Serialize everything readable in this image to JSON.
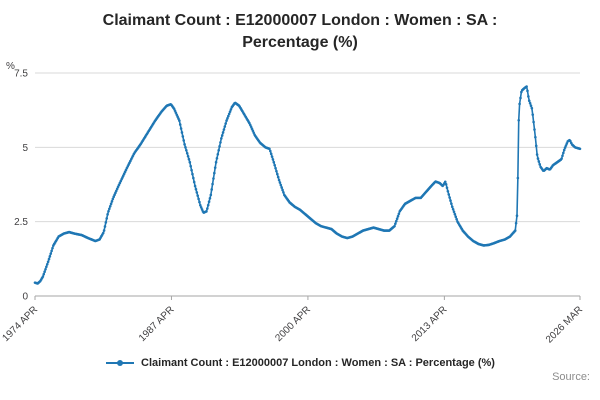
{
  "title": "Claimant Count : E12000007 London : Women : SA : Percentage (%)",
  "legend": {
    "label": "Claimant Count : E12000007 London : Women : SA : Percentage (%)"
  },
  "source": {
    "label": "Source:"
  },
  "colors": {
    "line": "#1f77b4",
    "grid": "#d9d9d9",
    "axis": "#a6a6a6",
    "tick_text": "#414042",
    "title_text": "#262626",
    "source_text": "#8c8c8c"
  },
  "chart_data": {
    "type": "line",
    "title": "Claimant Count : E12000007 London : Women : SA : Percentage (%)",
    "xlabel": "",
    "ylabel": "%",
    "unit_label": "%",
    "grid": "horizontal",
    "legend_position": "bottom",
    "xlim": [
      1974.25,
      2026.17
    ],
    "ylim": [
      0,
      7.5
    ],
    "yticks": [
      {
        "v": 0,
        "label": "0"
      },
      {
        "v": 2.5,
        "label": "2.5"
      },
      {
        "v": 5,
        "label": "5"
      },
      {
        "v": 7.5,
        "label": "7.5"
      }
    ],
    "xticks": [
      {
        "v": 1974.25,
        "label": "1974 APR"
      },
      {
        "v": 1987.25,
        "label": "1987 APR"
      },
      {
        "v": 2000.25,
        "label": "2000 APR"
      },
      {
        "v": 2013.25,
        "label": "2013 APR"
      },
      {
        "v": 2026.17,
        "label": "2026 MAR"
      }
    ],
    "series": [
      {
        "name": "Claimant Count : E12000007 London : Women : SA : Percentage (%)",
        "sampling": "monthly_interpolated_from_keypoints",
        "keypoints": [
          [
            1974.25,
            0.45
          ],
          [
            1974.5,
            0.42
          ],
          [
            1974.75,
            0.5
          ],
          [
            1975,
            0.65
          ],
          [
            1975.5,
            1.15
          ],
          [
            1976,
            1.7
          ],
          [
            1976.5,
            2.0
          ],
          [
            1977,
            2.1
          ],
          [
            1977.5,
            2.15
          ],
          [
            1978,
            2.1
          ],
          [
            1978.7,
            2.05
          ],
          [
            1979.3,
            1.95
          ],
          [
            1980,
            1.85
          ],
          [
            1980.4,
            1.9
          ],
          [
            1980.8,
            2.15
          ],
          [
            1981.2,
            2.8
          ],
          [
            1981.7,
            3.3
          ],
          [
            1982.2,
            3.7
          ],
          [
            1983,
            4.3
          ],
          [
            1983.7,
            4.8
          ],
          [
            1984.3,
            5.1
          ],
          [
            1985,
            5.5
          ],
          [
            1985.7,
            5.9
          ],
          [
            1986.3,
            6.2
          ],
          [
            1986.8,
            6.4
          ],
          [
            1987.2,
            6.45
          ],
          [
            1987.5,
            6.3
          ],
          [
            1988,
            5.9
          ],
          [
            1988.5,
            5.1
          ],
          [
            1989,
            4.5
          ],
          [
            1989.5,
            3.7
          ],
          [
            1990,
            3.05
          ],
          [
            1990.3,
            2.8
          ],
          [
            1990.6,
            2.85
          ],
          [
            1991,
            3.4
          ],
          [
            1991.5,
            4.5
          ],
          [
            1992,
            5.3
          ],
          [
            1992.5,
            5.9
          ],
          [
            1993,
            6.35
          ],
          [
            1993.3,
            6.5
          ],
          [
            1993.7,
            6.4
          ],
          [
            1994.2,
            6.1
          ],
          [
            1994.7,
            5.8
          ],
          [
            1995.2,
            5.4
          ],
          [
            1995.7,
            5.15
          ],
          [
            1996.2,
            5.0
          ],
          [
            1996.6,
            4.95
          ],
          [
            1997,
            4.5
          ],
          [
            1997.5,
            3.9
          ],
          [
            1998,
            3.4
          ],
          [
            1998.5,
            3.15
          ],
          [
            1999,
            3.0
          ],
          [
            1999.5,
            2.9
          ],
          [
            2000,
            2.75
          ],
          [
            2000.5,
            2.6
          ],
          [
            2001,
            2.45
          ],
          [
            2001.5,
            2.35
          ],
          [
            2002,
            2.3
          ],
          [
            2002.5,
            2.25
          ],
          [
            2003,
            2.1
          ],
          [
            2003.5,
            2.0
          ],
          [
            2004,
            1.95
          ],
          [
            2004.5,
            2.0
          ],
          [
            2005,
            2.1
          ],
          [
            2005.5,
            2.2
          ],
          [
            2006,
            2.25
          ],
          [
            2006.5,
            2.3
          ],
          [
            2007,
            2.25
          ],
          [
            2007.5,
            2.2
          ],
          [
            2008,
            2.2
          ],
          [
            2008.5,
            2.35
          ],
          [
            2009,
            2.85
          ],
          [
            2009.5,
            3.1
          ],
          [
            2010,
            3.2
          ],
          [
            2010.5,
            3.3
          ],
          [
            2011,
            3.3
          ],
          [
            2011.5,
            3.5
          ],
          [
            2012,
            3.7
          ],
          [
            2012.4,
            3.85
          ],
          [
            2012.8,
            3.8
          ],
          [
            2013.1,
            3.7
          ],
          [
            2013.35,
            3.85
          ],
          [
            2013.6,
            3.5
          ],
          [
            2014,
            3.0
          ],
          [
            2014.5,
            2.5
          ],
          [
            2015,
            2.2
          ],
          [
            2015.5,
            2.0
          ],
          [
            2016,
            1.85
          ],
          [
            2016.5,
            1.75
          ],
          [
            2017,
            1.7
          ],
          [
            2017.5,
            1.72
          ],
          [
            2018,
            1.78
          ],
          [
            2018.5,
            1.85
          ],
          [
            2019,
            1.9
          ],
          [
            2019.5,
            2.0
          ],
          [
            2020,
            2.2
          ],
          [
            2020.2,
            2.8
          ],
          [
            2020.35,
            6.3
          ],
          [
            2020.6,
            6.9
          ],
          [
            2020.9,
            7.0
          ],
          [
            2021.1,
            7.05
          ],
          [
            2021.3,
            6.6
          ],
          [
            2021.6,
            6.3
          ],
          [
            2021.9,
            5.4
          ],
          [
            2022.1,
            4.7
          ],
          [
            2022.4,
            4.35
          ],
          [
            2022.7,
            4.2
          ],
          [
            2023,
            4.3
          ],
          [
            2023.3,
            4.25
          ],
          [
            2023.6,
            4.4
          ],
          [
            2024,
            4.5
          ],
          [
            2024.4,
            4.6
          ],
          [
            2024.7,
            4.95
          ],
          [
            2025,
            5.2
          ],
          [
            2025.2,
            5.25
          ],
          [
            2025.4,
            5.1
          ],
          [
            2025.7,
            5.0
          ],
          [
            2026.17,
            4.95
          ]
        ]
      }
    ]
  }
}
